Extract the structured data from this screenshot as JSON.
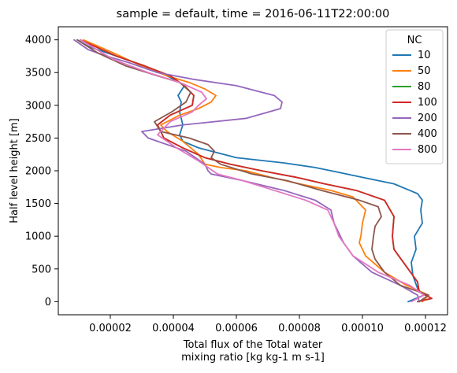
{
  "chart_data": {
    "type": "line",
    "title": "sample = default, time = 2016-06-11T22:00:00",
    "xlabel_line1": "Total flux of the Total water",
    "xlabel_line2": "mixing ratio [kg kg-1 m s-1]",
    "ylabel": "Half level height [m]",
    "xlim": [
      3.5e-06,
      0.000127
    ],
    "ylim": [
      -200,
      4200
    ],
    "xticks": [
      2e-05,
      4e-05,
      6e-05,
      8e-05,
      0.0001,
      0.00012
    ],
    "xtick_labels": [
      "0.00002",
      "0.00004",
      "0.00006",
      "0.00008",
      "0.00010",
      "0.00012"
    ],
    "yticks": [
      0,
      500,
      1000,
      1500,
      2000,
      2500,
      3000,
      3500,
      4000
    ],
    "ytick_labels": [
      "0",
      "500",
      "1000",
      "1500",
      "2000",
      "2500",
      "3000",
      "3500",
      "4000"
    ],
    "grid": false,
    "legend": {
      "title": "NC",
      "position": "top-right"
    },
    "series": [
      {
        "name": "10",
        "color": "#1f77b4",
        "x": [
          0.0001145,
          0.0001195,
          0.0001175,
          0.000116,
          0.0001155,
          0.000117,
          0.0001165,
          0.000119,
          0.0001185,
          0.000119,
          0.0001175,
          0.000115,
          0.00011,
          0.0001,
          9.2e-05,
          8.5e-05,
          7.5e-05,
          6e-05,
          4.8e-05,
          4.3e-05,
          4.2e-05,
          4.3e-05,
          4.2e-05,
          4.25e-05,
          4.15e-05,
          4.35e-05,
          4.2e-05,
          3.8e-05,
          3.1e-05,
          2.2e-05,
          1.3e-05,
          9.5e-06
        ],
        "y": [
          0,
          100,
          200,
          400,
          600,
          800,
          1000,
          1200,
          1400,
          1550,
          1650,
          1700,
          1800,
          1900,
          1980,
          2050,
          2120,
          2200,
          2350,
          2450,
          2550,
          2700,
          2900,
          3050,
          3150,
          3300,
          3350,
          3450,
          3600,
          3750,
          3900,
          4000
        ]
      },
      {
        "name": "50",
        "color": "#ff7f0e",
        "x": [
          0.000119,
          0.000121,
          0.000114,
          0.000107,
          0.000101,
          9.9e-05,
          9.95e-05,
          0.0001,
          0.000101,
          9.7e-05,
          9e-05,
          8e-05,
          7.1e-05,
          6.3e-05,
          5.5e-05,
          5e-05,
          4.8e-05,
          4.3e-05,
          3.8e-05,
          3.6e-05,
          4.2e-05,
          4.8e-05,
          5.2e-05,
          5.35e-05,
          5e-05,
          4.5e-05,
          3.8e-05,
          3e-05,
          2.1e-05,
          1.15e-05
        ],
        "y": [
          0,
          100,
          250,
          450,
          700,
          900,
          1000,
          1200,
          1400,
          1600,
          1700,
          1800,
          1900,
          2000,
          2050,
          2100,
          2250,
          2450,
          2600,
          2700,
          2850,
          2950,
          3050,
          3150,
          3250,
          3350,
          3450,
          3600,
          3800,
          4000
        ]
      },
      {
        "name": "80",
        "color": "#2ca02c",
        "x": [
          0.0001175,
          0.000122,
          0.000118,
          0.0001175,
          0.000113,
          0.00011,
          0.0001095,
          0.00011,
          0.000107,
          9.8e-05,
          8.8e-05,
          7.9e-05,
          6.8e-05,
          5.8e-05,
          5e-05,
          4.3e-05,
          3.7e-05,
          3.5e-05,
          3.9e-05,
          4.6e-05,
          4.65e-05,
          4.35e-05,
          3.9e-05,
          3.1e-05,
          2.2e-05,
          1.05e-05
        ],
        "y": [
          0,
          50,
          150,
          300,
          600,
          800,
          1000,
          1300,
          1550,
          1700,
          1800,
          1900,
          2000,
          2100,
          2200,
          2350,
          2500,
          2700,
          2850,
          3000,
          3150,
          3300,
          3450,
          3600,
          3750,
          4000
        ]
      },
      {
        "name": "100",
        "color": "#d62728",
        "x": [
          0.0001175,
          0.000122,
          0.000118,
          0.0001175,
          0.000113,
          0.00011,
          0.0001095,
          0.00011,
          0.000107,
          9.8e-05,
          8.8e-05,
          7.9e-05,
          6.8e-05,
          5.8e-05,
          5e-05,
          4.3e-05,
          3.7e-05,
          3.5e-05,
          3.9e-05,
          4.6e-05,
          4.65e-05,
          4.35e-05,
          3.9e-05,
          3.1e-05,
          2.2e-05,
          1.05e-05
        ],
        "y": [
          0,
          50,
          150,
          300,
          600,
          800,
          1000,
          1300,
          1550,
          1700,
          1800,
          1900,
          2000,
          2100,
          2200,
          2350,
          2500,
          2700,
          2850,
          3000,
          3150,
          3300,
          3450,
          3600,
          3750,
          4000
        ]
      },
      {
        "name": "200",
        "color": "#9467bd",
        "x": [
          0.000118,
          0.0001175,
          0.000112,
          0.000103,
          9.7e-05,
          9.4e-05,
          9.3e-05,
          9.1e-05,
          9e-05,
          8.5e-05,
          7.5e-05,
          6.2e-05,
          5.2e-05,
          5.1e-05,
          5e-05,
          4.4e-05,
          3.2e-05,
          3e-05,
          4.3e-05,
          6.3e-05,
          7.4e-05,
          7.45e-05,
          7.2e-05,
          6e-05,
          4.6e-05,
          3.5e-05,
          2.6e-05,
          1.9e-05,
          1.3e-05,
          8.5e-06
        ],
        "y": [
          0,
          100,
          250,
          450,
          700,
          900,
          1000,
          1200,
          1400,
          1550,
          1700,
          1850,
          1950,
          2000,
          2100,
          2300,
          2500,
          2600,
          2700,
          2800,
          2950,
          3050,
          3150,
          3300,
          3400,
          3500,
          3650,
          3750,
          3850,
          4000
        ]
      },
      {
        "name": "400",
        "color": "#8c564b",
        "x": [
          0.000118,
          0.000121,
          0.000112,
          0.000107,
          0.000104,
          0.000103,
          0.0001035,
          0.000104,
          0.000106,
          0.000105,
          9.9e-05,
          8.7e-05,
          7.6e-05,
          6.5e-05,
          5.5e-05,
          5.2e-05,
          5.3e-05,
          5.1e-05,
          4.5e-05,
          3.6e-05,
          3.4e-05,
          3.95e-05,
          4.4e-05,
          4.55e-05,
          4.2e-05,
          3.5e-05,
          2.5e-05,
          1.6e-05,
          9.5e-06
        ],
        "y": [
          0,
          100,
          250,
          450,
          650,
          800,
          1000,
          1150,
          1300,
          1450,
          1550,
          1700,
          1850,
          1950,
          2100,
          2200,
          2300,
          2400,
          2500,
          2600,
          2750,
          2900,
          3050,
          3200,
          3350,
          3450,
          3600,
          3800,
          4000
        ]
      },
      {
        "name": "800",
        "color": "#e377c2",
        "x": [
          0.0001155,
          0.0001195,
          0.000115,
          0.000105,
          9.7e-05,
          9.4e-05,
          9.25e-05,
          9.1e-05,
          8.9e-05,
          8.2e-05,
          7.2e-05,
          6.2e-05,
          5.4e-05,
          5.1e-05,
          4.8e-05,
          4.1e-05,
          3.5e-05,
          3.9e-05,
          4.6e-05,
          4.8e-05,
          5.05e-05,
          4.9e-05,
          4.2e-05,
          3.2e-05,
          2.1e-05,
          1.05e-05
        ],
        "y": [
          0,
          100,
          250,
          450,
          700,
          900,
          1000,
          1200,
          1400,
          1550,
          1700,
          1850,
          1950,
          2050,
          2150,
          2350,
          2550,
          2750,
          2900,
          3000,
          3100,
          3200,
          3350,
          3500,
          3700,
          4000
        ]
      }
    ]
  }
}
